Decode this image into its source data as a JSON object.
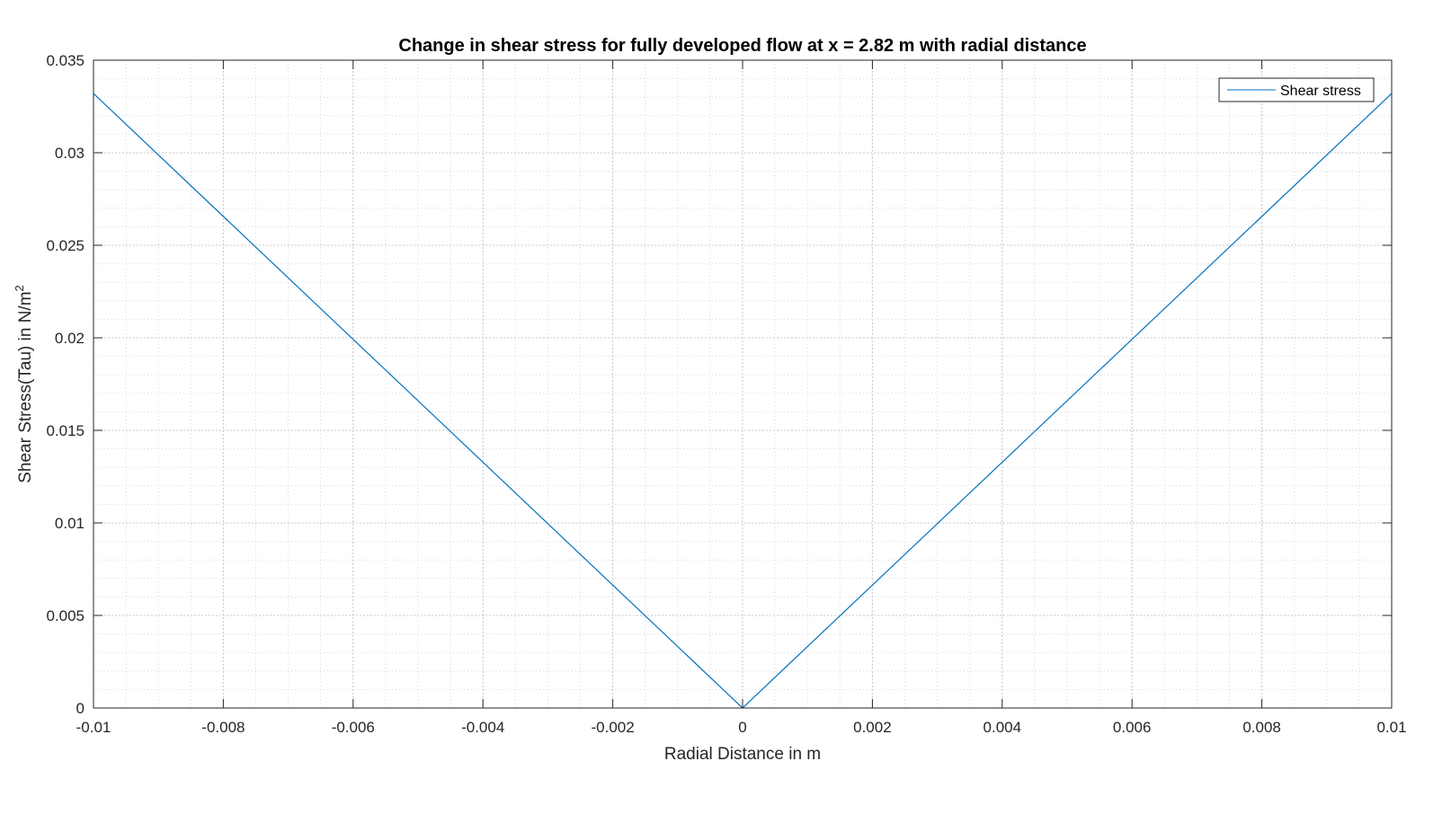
{
  "chart_data": {
    "type": "line",
    "title": "Change in shear stress for fully developed flow at x = 2.82 m with radial distance",
    "xlabel": "Radial Distance in m",
    "ylabel": "Shear Stress(Tau) in N/m",
    "ylabel_superscript": "2",
    "xlim": [
      -0.01,
      0.01
    ],
    "ylim": [
      0,
      0.035
    ],
    "xticks": [
      -0.01,
      -0.008,
      -0.006,
      -0.004,
      -0.002,
      0,
      0.002,
      0.004,
      0.006,
      0.008,
      0.01
    ],
    "xtick_labels": [
      "-0.01",
      "-0.008",
      "-0.006",
      "-0.004",
      "-0.002",
      "0",
      "0.002",
      "0.004",
      "0.006",
      "0.008",
      "0.01"
    ],
    "yticks": [
      0,
      0.005,
      0.01,
      0.015,
      0.02,
      0.025,
      0.03,
      0.035
    ],
    "ytick_labels": [
      "0",
      "0.005",
      "0.01",
      "0.015",
      "0.02",
      "0.025",
      "0.03",
      "0.035"
    ],
    "grid": true,
    "minor_grid": true,
    "legend_position": "top-right",
    "series": [
      {
        "name": "Shear stress",
        "color": "#0072BD",
        "x": [
          -0.01,
          0,
          0.01
        ],
        "y": [
          0.0332,
          0,
          0.0332
        ]
      }
    ]
  }
}
